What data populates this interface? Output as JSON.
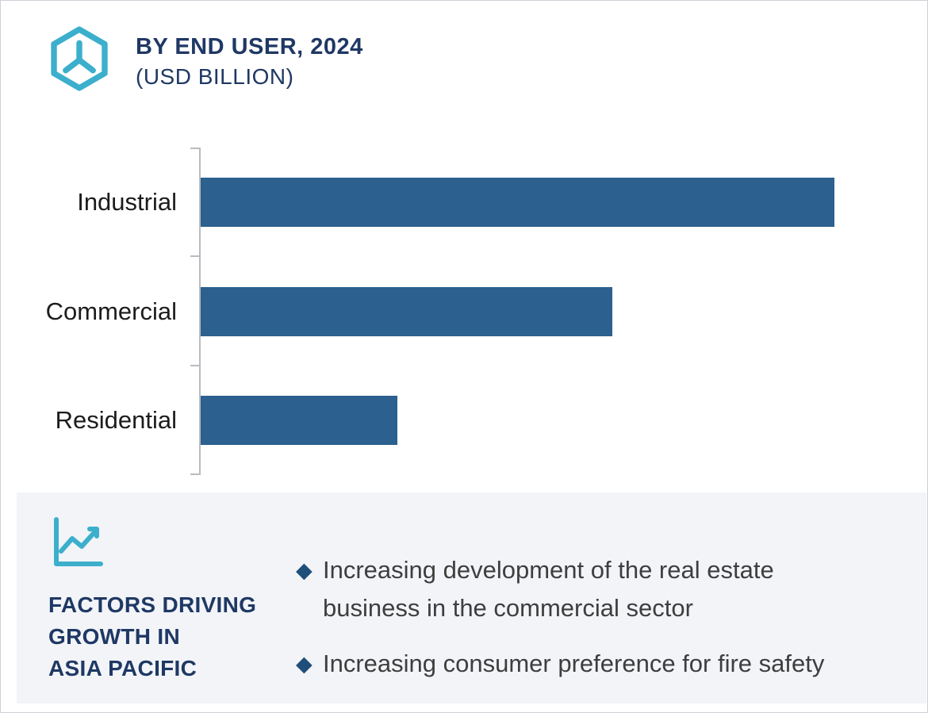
{
  "header": {
    "title_line1": "BY END USER, 2024",
    "title_line2": "(USD BILLION)",
    "logo_icon": "hexagon-y-logo-icon"
  },
  "chart_data": {
    "type": "bar",
    "orientation": "horizontal",
    "title": "BY END USER, 2024 (USD BILLION)",
    "categories": [
      "Industrial",
      "Commercial",
      "Residential"
    ],
    "values_relative": [
      100,
      65,
      31
    ],
    "axis_values_labeled": false,
    "value_unit": "USD Billion",
    "bar_color": "#2b608f",
    "axis_color": "#b8bcc0",
    "plot_max_percent": 87,
    "grid": false,
    "legend": false
  },
  "factors": {
    "icon": "line-chart-icon",
    "heading_lines": [
      "FACTORS DRIVING",
      "GROWTH IN",
      "ASIA PACIFIC"
    ],
    "bullet_marker": "◆",
    "bullets": [
      "Increasing development of the real estate business in the commercial sector",
      "Increasing consumer preference for fire safety"
    ],
    "panel_bg": "#f2f4f8"
  },
  "colors": {
    "accent_teal": "#3bafcc",
    "navy": "#1f3864",
    "bar_blue": "#2b608f",
    "diamond_blue": "#1f4e79",
    "body_text": "#3e3e3e"
  }
}
